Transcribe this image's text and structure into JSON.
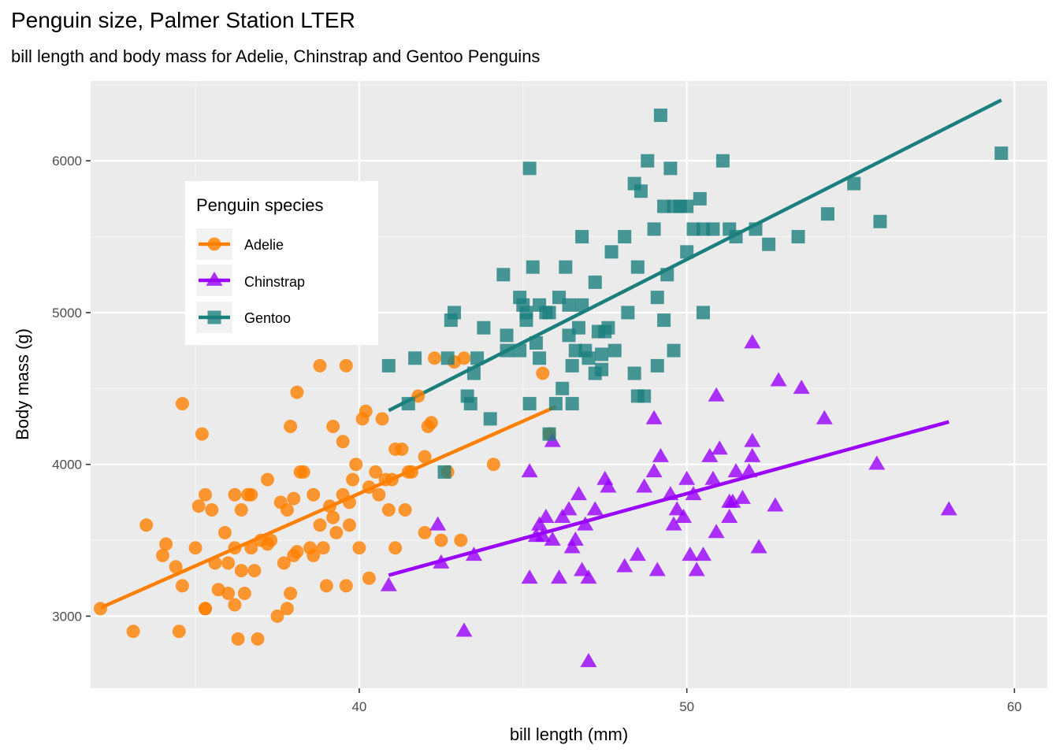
{
  "title": "Penguin size, Palmer Station LTER",
  "subtitle": "bill length and body mass for Adelie, Chinstrap and Gentoo Penguins",
  "chart_data": {
    "type": "scatter",
    "title": "Penguin size, Palmer Station LTER",
    "subtitle": "bill length and body mass for Adelie, Chinstrap and Gentoo Penguins",
    "xlabel": "bill length (mm)",
    "ylabel": "Body mass (g)",
    "xlim": [
      31.8,
      61.0
    ],
    "ylim": [
      2525,
      6525
    ],
    "x_ticks": [
      40,
      50,
      60
    ],
    "y_ticks": [
      3000,
      4000,
      5000,
      6000
    ],
    "grid": true,
    "legend": {
      "title": "Penguin species",
      "position": "inside-top-left",
      "entries": [
        "Adelie",
        "Chinstrap",
        "Gentoo"
      ]
    },
    "series": [
      {
        "name": "Adelie",
        "color": "#FF7F00",
        "marker": "circle",
        "trend": [
          [
            32.1,
            3055
          ],
          [
            46.0,
            4380
          ]
        ],
        "points": [
          [
            32.1,
            3050
          ],
          [
            33.1,
            2900
          ],
          [
            33.5,
            3600
          ],
          [
            34.0,
            3400
          ],
          [
            34.1,
            3475
          ],
          [
            34.4,
            3325
          ],
          [
            34.5,
            2900
          ],
          [
            34.6,
            3200
          ],
          [
            34.6,
            4400
          ],
          [
            35.0,
            3450
          ],
          [
            35.1,
            3725
          ],
          [
            35.2,
            4200
          ],
          [
            35.3,
            3800
          ],
          [
            35.3,
            3050
          ],
          [
            35.5,
            3700
          ],
          [
            35.6,
            3350
          ],
          [
            35.7,
            3175
          ],
          [
            35.9,
            3550
          ],
          [
            36.0,
            3350
          ],
          [
            36.0,
            3150
          ],
          [
            36.2,
            3800
          ],
          [
            36.2,
            3450
          ],
          [
            36.2,
            3075
          ],
          [
            36.4,
            3700
          ],
          [
            36.5,
            3150
          ],
          [
            36.6,
            3800
          ],
          [
            36.7,
            3450
          ],
          [
            36.8,
            3300
          ],
          [
            36.9,
            2850
          ],
          [
            36.7,
            3800
          ],
          [
            37.0,
            3500
          ],
          [
            37.2,
            3475
          ],
          [
            37.3,
            3500
          ],
          [
            37.5,
            3000
          ],
          [
            37.6,
            3750
          ],
          [
            37.7,
            3350
          ],
          [
            37.8,
            3050
          ],
          [
            37.8,
            3700
          ],
          [
            37.9,
            3150
          ],
          [
            38.0,
            3775
          ],
          [
            38.1,
            3425
          ],
          [
            38.1,
            4475
          ],
          [
            38.2,
            3950
          ],
          [
            38.3,
            3950
          ],
          [
            38.5,
            3450
          ],
          [
            38.6,
            3800
          ],
          [
            38.8,
            3600
          ],
          [
            38.9,
            3450
          ],
          [
            39.0,
            3200
          ],
          [
            39.1,
            3725
          ],
          [
            39.2,
            3650
          ],
          [
            39.3,
            3550
          ],
          [
            39.5,
            3800
          ],
          [
            39.6,
            3200
          ],
          [
            39.7,
            3750
          ],
          [
            39.8,
            3900
          ],
          [
            39.9,
            4000
          ],
          [
            40.0,
            3450
          ],
          [
            40.1,
            4300
          ],
          [
            40.2,
            4350
          ],
          [
            40.3,
            3250
          ],
          [
            40.5,
            3950
          ],
          [
            40.6,
            3800
          ],
          [
            40.7,
            4300
          ],
          [
            40.8,
            3900
          ],
          [
            40.9,
            3700
          ],
          [
            41.0,
            3900
          ],
          [
            41.1,
            3450
          ],
          [
            41.3,
            4100
          ],
          [
            41.4,
            3700
          ],
          [
            41.5,
            3950
          ],
          [
            41.6,
            3950
          ],
          [
            41.8,
            4450
          ],
          [
            42.0,
            4050
          ],
          [
            42.1,
            4250
          ],
          [
            42.2,
            4275
          ],
          [
            42.3,
            4700
          ],
          [
            42.5,
            3500
          ],
          [
            42.7,
            3950
          ],
          [
            42.9,
            4675
          ],
          [
            43.1,
            3500
          ],
          [
            43.2,
            4700
          ],
          [
            44.1,
            4000
          ],
          [
            45.6,
            4600
          ],
          [
            45.8,
            4200
          ],
          [
            35.3,
            3050
          ],
          [
            36.4,
            3300
          ],
          [
            37.2,
            3900
          ],
          [
            37.9,
            4250
          ],
          [
            38.6,
            3400
          ],
          [
            39.5,
            4150
          ],
          [
            39.7,
            3600
          ],
          [
            40.3,
            3850
          ],
          [
            41.1,
            4100
          ],
          [
            42.0,
            3550
          ],
          [
            36.3,
            2850
          ],
          [
            38.0,
            3400
          ],
          [
            39.2,
            4250
          ],
          [
            38.8,
            4650
          ],
          [
            39.6,
            4650
          ]
        ]
      },
      {
        "name": "Chinstrap",
        "color": "#9A00FF",
        "marker": "triangle",
        "trend": [
          [
            40.9,
            3270
          ],
          [
            58.0,
            4280
          ]
        ],
        "points": [
          [
            40.9,
            3200
          ],
          [
            42.4,
            3600
          ],
          [
            42.5,
            3350
          ],
          [
            43.2,
            2900
          ],
          [
            43.5,
            3400
          ],
          [
            45.2,
            3950
          ],
          [
            45.2,
            3250
          ],
          [
            45.4,
            3525
          ],
          [
            45.5,
            3600
          ],
          [
            45.6,
            3525
          ],
          [
            45.7,
            3650
          ],
          [
            45.9,
            4150
          ],
          [
            46.1,
            3250
          ],
          [
            46.2,
            3650
          ],
          [
            46.4,
            3700
          ],
          [
            46.5,
            3450
          ],
          [
            46.6,
            3500
          ],
          [
            46.7,
            3800
          ],
          [
            46.8,
            3300
          ],
          [
            46.9,
            3600
          ],
          [
            47.0,
            2700
          ],
          [
            47.2,
            3700
          ],
          [
            47.5,
            3900
          ],
          [
            47.6,
            3850
          ],
          [
            48.1,
            3325
          ],
          [
            48.5,
            3400
          ],
          [
            49.0,
            3950
          ],
          [
            49.1,
            3300
          ],
          [
            49.2,
            4050
          ],
          [
            49.5,
            3800
          ],
          [
            49.6,
            3600
          ],
          [
            49.7,
            3700
          ],
          [
            49.9,
            3650
          ],
          [
            50.0,
            3900
          ],
          [
            50.1,
            3400
          ],
          [
            50.2,
            3800
          ],
          [
            50.3,
            3300
          ],
          [
            50.5,
            3400
          ],
          [
            50.7,
            4050
          ],
          [
            50.8,
            3900
          ],
          [
            50.9,
            3550
          ],
          [
            51.0,
            4100
          ],
          [
            51.3,
            3650
          ],
          [
            51.4,
            3750
          ],
          [
            51.5,
            3950
          ],
          [
            51.7,
            3775
          ],
          [
            51.9,
            3950
          ],
          [
            52.0,
            4800
          ],
          [
            52.0,
            4150
          ],
          [
            52.2,
            3450
          ],
          [
            52.7,
            3725
          ],
          [
            52.8,
            4550
          ],
          [
            53.5,
            4500
          ],
          [
            54.2,
            4300
          ],
          [
            55.8,
            4000
          ],
          [
            58.0,
            3700
          ],
          [
            49.0,
            4300
          ],
          [
            50.9,
            4450
          ],
          [
            52.0,
            4050
          ],
          [
            51.3,
            3750
          ],
          [
            48.7,
            3850
          ],
          [
            47.0,
            3250
          ],
          [
            45.9,
            3500
          ]
        ]
      },
      {
        "name": "Gentoo",
        "color": "#1B7F7E",
        "marker": "square",
        "trend": [
          [
            40.9,
            4355
          ],
          [
            59.6,
            6400
          ]
        ],
        "points": [
          [
            40.9,
            4650
          ],
          [
            41.5,
            4400
          ],
          [
            41.7,
            4700
          ],
          [
            42.6,
            3950
          ],
          [
            42.7,
            4700
          ],
          [
            42.8,
            4950
          ],
          [
            42.9,
            5000
          ],
          [
            43.3,
            4450
          ],
          [
            43.4,
            4400
          ],
          [
            43.5,
            4600
          ],
          [
            43.6,
            4700
          ],
          [
            43.8,
            4900
          ],
          [
            44.0,
            4300
          ],
          [
            44.4,
            5250
          ],
          [
            44.5,
            4850
          ],
          [
            44.5,
            4750
          ],
          [
            44.9,
            5100
          ],
          [
            45.0,
            5050
          ],
          [
            45.1,
            5000
          ],
          [
            45.2,
            4400
          ],
          [
            45.2,
            5950
          ],
          [
            45.3,
            5300
          ],
          [
            45.4,
            4800
          ],
          [
            45.5,
            4700
          ],
          [
            45.7,
            5000
          ],
          [
            45.8,
            4200
          ],
          [
            46.0,
            4400
          ],
          [
            46.1,
            5100
          ],
          [
            46.2,
            4500
          ],
          [
            46.3,
            5300
          ],
          [
            46.4,
            4850
          ],
          [
            46.5,
            4400
          ],
          [
            46.6,
            4750
          ],
          [
            46.7,
            4900
          ],
          [
            46.8,
            5500
          ],
          [
            47.0,
            4700
          ],
          [
            47.2,
            5200
          ],
          [
            47.3,
            4875
          ],
          [
            47.4,
            4725
          ],
          [
            47.5,
            4875
          ],
          [
            47.7,
            5400
          ],
          [
            47.8,
            4750
          ],
          [
            48.1,
            5500
          ],
          [
            48.2,
            5000
          ],
          [
            48.4,
            5850
          ],
          [
            48.5,
            5300
          ],
          [
            48.7,
            4450
          ],
          [
            48.8,
            6000
          ],
          [
            49.0,
            5550
          ],
          [
            49.1,
            5100
          ],
          [
            49.2,
            6300
          ],
          [
            49.3,
            5700
          ],
          [
            49.4,
            5250
          ],
          [
            49.5,
            5950
          ],
          [
            49.6,
            5700
          ],
          [
            49.8,
            5700
          ],
          [
            50.0,
            5400
          ],
          [
            50.2,
            5550
          ],
          [
            50.4,
            5750
          ],
          [
            50.5,
            5000
          ],
          [
            50.8,
            5550
          ],
          [
            51.1,
            6000
          ],
          [
            51.3,
            5550
          ],
          [
            51.5,
            5500
          ],
          [
            52.1,
            5550
          ],
          [
            52.5,
            5450
          ],
          [
            53.4,
            5500
          ],
          [
            54.3,
            5650
          ],
          [
            55.1,
            5850
          ],
          [
            55.9,
            5600
          ],
          [
            59.6,
            6050
          ],
          [
            45.5,
            5050
          ],
          [
            46.9,
            4750
          ],
          [
            47.6,
            4900
          ],
          [
            48.5,
            4450
          ],
          [
            49.1,
            4650
          ],
          [
            47.2,
            4600
          ],
          [
            45.8,
            5000
          ],
          [
            46.5,
            4650
          ],
          [
            48.4,
            4600
          ],
          [
            50.5,
            5550
          ],
          [
            49.6,
            4750
          ],
          [
            49.3,
            4950
          ],
          [
            46.4,
            5050
          ],
          [
            47.4,
            4625
          ],
          [
            45.1,
            4950
          ],
          [
            48.6,
            5800
          ],
          [
            50.0,
            5700
          ],
          [
            44.9,
            4750
          ],
          [
            46.8,
            5050
          ]
        ]
      }
    ]
  }
}
